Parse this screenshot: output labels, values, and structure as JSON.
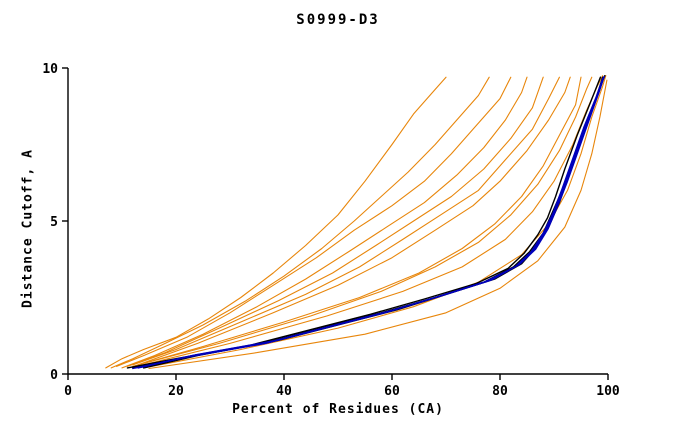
{
  "chart_data": {
    "type": "line",
    "title": "S0999-D3",
    "xlabel": "Percent of Residues (CA)",
    "ylabel": "Distance Cutoff, A",
    "xlim": [
      0,
      100
    ],
    "ylim": [
      0,
      10
    ],
    "xticks": [
      0,
      20,
      40,
      60,
      80,
      100
    ],
    "yticks": [
      0,
      5,
      10
    ],
    "grid": false,
    "legend": "none",
    "colors": {
      "orange": "#e8860b",
      "black": "#000000",
      "blue": "#0000bb"
    },
    "series": [
      {
        "color": "orange",
        "points": [
          [
            7,
            0.2
          ],
          [
            10,
            0.5
          ],
          [
            14,
            0.8
          ],
          [
            20,
            1.2
          ],
          [
            26,
            1.8
          ],
          [
            32,
            2.5
          ],
          [
            38,
            3.3
          ],
          [
            44,
            4.2
          ],
          [
            50,
            5.2
          ],
          [
            55,
            6.3
          ],
          [
            60,
            7.5
          ],
          [
            64,
            8.5
          ],
          [
            68,
            9.3
          ],
          [
            70,
            9.7
          ]
        ]
      },
      {
        "color": "orange",
        "points": [
          [
            8,
            0.2
          ],
          [
            12,
            0.5
          ],
          [
            18,
            1.0
          ],
          [
            25,
            1.6
          ],
          [
            33,
            2.4
          ],
          [
            40,
            3.2
          ],
          [
            47,
            4.1
          ],
          [
            53,
            5.0
          ],
          [
            58,
            5.8
          ],
          [
            63,
            6.6
          ],
          [
            68,
            7.5
          ],
          [
            72,
            8.3
          ],
          [
            76,
            9.1
          ],
          [
            78,
            9.7
          ]
        ]
      },
      {
        "color": "orange",
        "points": [
          [
            9,
            0.25
          ],
          [
            14,
            0.6
          ],
          [
            22,
            1.2
          ],
          [
            30,
            2.0
          ],
          [
            38,
            2.9
          ],
          [
            46,
            3.8
          ],
          [
            53,
            4.7
          ],
          [
            60,
            5.5
          ],
          [
            66,
            6.3
          ],
          [
            71,
            7.2
          ],
          [
            76,
            8.2
          ],
          [
            80,
            9.0
          ],
          [
            82,
            9.7
          ]
        ]
      },
      {
        "color": "orange",
        "points": [
          [
            10,
            0.2
          ],
          [
            16,
            0.6
          ],
          [
            25,
            1.3
          ],
          [
            35,
            2.2
          ],
          [
            44,
            3.1
          ],
          [
            52,
            4.0
          ],
          [
            59,
            4.8
          ],
          [
            66,
            5.6
          ],
          [
            72,
            6.5
          ],
          [
            77,
            7.4
          ],
          [
            81,
            8.3
          ],
          [
            84,
            9.2
          ],
          [
            85,
            9.7
          ]
        ]
      },
      {
        "color": "orange",
        "points": [
          [
            11,
            0.25
          ],
          [
            18,
            0.7
          ],
          [
            28,
            1.5
          ],
          [
            39,
            2.4
          ],
          [
            49,
            3.3
          ],
          [
            57,
            4.2
          ],
          [
            64,
            5.0
          ],
          [
            71,
            5.8
          ],
          [
            77,
            6.7
          ],
          [
            82,
            7.7
          ],
          [
            86,
            8.7
          ],
          [
            88,
            9.7
          ]
        ]
      },
      {
        "color": "orange",
        "points": [
          [
            12,
            0.3
          ],
          [
            20,
            0.8
          ],
          [
            32,
            1.7
          ],
          [
            44,
            2.6
          ],
          [
            54,
            3.5
          ],
          [
            62,
            4.4
          ],
          [
            69,
            5.2
          ],
          [
            76,
            6.0
          ],
          [
            81,
            7.0
          ],
          [
            86,
            8.0
          ],
          [
            89,
            9.0
          ],
          [
            91,
            9.7
          ]
        ]
      },
      {
        "color": "orange",
        "points": [
          [
            13,
            0.3
          ],
          [
            24,
            1.0
          ],
          [
            38,
            2.0
          ],
          [
            50,
            2.9
          ],
          [
            60,
            3.8
          ],
          [
            68,
            4.7
          ],
          [
            75,
            5.5
          ],
          [
            80,
            6.3
          ],
          [
            85,
            7.3
          ],
          [
            89,
            8.3
          ],
          [
            92,
            9.2
          ],
          [
            93,
            9.7
          ]
        ]
      },
      {
        "color": "orange",
        "points": [
          [
            12,
            0.25
          ],
          [
            25,
            0.9
          ],
          [
            40,
            1.7
          ],
          [
            54,
            2.5
          ],
          [
            65,
            3.3
          ],
          [
            73,
            4.1
          ],
          [
            79,
            4.9
          ],
          [
            84,
            5.8
          ],
          [
            88,
            6.8
          ],
          [
            91,
            7.8
          ],
          [
            94,
            8.8
          ],
          [
            95,
            9.7
          ]
        ]
      },
      {
        "color": "orange",
        "points": [
          [
            13,
            0.3
          ],
          [
            28,
            1.0
          ],
          [
            45,
            1.9
          ],
          [
            58,
            2.7
          ],
          [
            68,
            3.5
          ],
          [
            76,
            4.3
          ],
          [
            82,
            5.2
          ],
          [
            87,
            6.2
          ],
          [
            91,
            7.3
          ],
          [
            94,
            8.4
          ],
          [
            96,
            9.3
          ],
          [
            97,
            9.7
          ]
        ]
      },
      {
        "color": "orange",
        "points": [
          [
            14,
            0.3
          ],
          [
            30,
            1.0
          ],
          [
            48,
            1.9
          ],
          [
            62,
            2.7
          ],
          [
            73,
            3.5
          ],
          [
            81,
            4.4
          ],
          [
            86,
            5.3
          ],
          [
            90,
            6.3
          ],
          [
            93.5,
            7.5
          ],
          [
            96,
            8.6
          ],
          [
            98,
            9.4
          ],
          [
            99,
            9.75
          ]
        ]
      },
      {
        "color": "orange",
        "points": [
          [
            14,
            0.2
          ],
          [
            32,
            0.8
          ],
          [
            50,
            1.5
          ],
          [
            64,
            2.2
          ],
          [
            76,
            3.0
          ],
          [
            84,
            3.9
          ],
          [
            89,
            4.9
          ],
          [
            92.5,
            6.0
          ],
          [
            95,
            7.2
          ],
          [
            97,
            8.4
          ],
          [
            99,
            9.4
          ],
          [
            99.6,
            9.75
          ]
        ]
      },
      {
        "color": "orange",
        "points": [
          [
            15,
            0.18
          ],
          [
            35,
            0.7
          ],
          [
            55,
            1.3
          ],
          [
            70,
            2.0
          ],
          [
            80,
            2.8
          ],
          [
            87,
            3.7
          ],
          [
            92,
            4.8
          ],
          [
            95,
            6.0
          ],
          [
            97,
            7.2
          ],
          [
            98.5,
            8.4
          ],
          [
            99.8,
            9.6
          ]
        ]
      },
      {
        "color": "black",
        "points": [
          [
            12,
            0.2
          ],
          [
            22,
            0.55
          ],
          [
            36,
            1.0
          ],
          [
            47,
            1.5
          ],
          [
            58,
            2.0
          ],
          [
            68,
            2.5
          ],
          [
            77,
            3.0
          ],
          [
            82.5,
            3.5
          ],
          [
            85.5,
            4.0
          ],
          [
            88,
            4.6
          ],
          [
            89.5,
            5.2
          ],
          [
            91.5,
            6.0
          ],
          [
            93.5,
            7.0
          ],
          [
            95.5,
            8.0
          ],
          [
            97.8,
            9.0
          ],
          [
            99,
            9.7
          ]
        ]
      },
      {
        "color": "black",
        "points": [
          [
            14,
            0.2
          ],
          [
            24,
            0.6
          ],
          [
            39,
            1.1
          ],
          [
            50,
            1.6
          ],
          [
            61,
            2.1
          ],
          [
            70,
            2.6
          ],
          [
            79,
            3.1
          ],
          [
            84,
            3.6
          ],
          [
            86.5,
            4.1
          ],
          [
            89,
            4.8
          ],
          [
            91,
            5.6
          ],
          [
            93,
            6.6
          ],
          [
            95,
            7.6
          ],
          [
            97,
            8.6
          ],
          [
            98.8,
            9.5
          ],
          [
            99.4,
            9.75
          ]
        ]
      },
      {
        "color": "black",
        "points": [
          [
            11,
            0.2
          ],
          [
            20,
            0.5
          ],
          [
            34,
            0.95
          ],
          [
            45,
            1.45
          ],
          [
            56,
            1.95
          ],
          [
            66,
            2.45
          ],
          [
            75.5,
            2.95
          ],
          [
            81.5,
            3.45
          ],
          [
            84.5,
            3.95
          ],
          [
            87,
            4.55
          ],
          [
            88.8,
            5.1
          ],
          [
            90.3,
            5.8
          ],
          [
            92,
            6.7
          ],
          [
            94.3,
            7.8
          ],
          [
            96.8,
            8.9
          ],
          [
            98.6,
            9.7
          ]
        ]
      },
      {
        "color": "blue",
        "points": [
          [
            12.5,
            0.2
          ],
          [
            22.5,
            0.57
          ],
          [
            37,
            1.02
          ],
          [
            48,
            1.52
          ],
          [
            59,
            2.02
          ],
          [
            68.5,
            2.52
          ],
          [
            77.5,
            3.02
          ],
          [
            83,
            3.52
          ],
          [
            86,
            4.02
          ],
          [
            88.3,
            4.65
          ],
          [
            90,
            5.3
          ],
          [
            91.8,
            6.1
          ],
          [
            93.8,
            7.1
          ],
          [
            95.8,
            8.1
          ],
          [
            98,
            9.1
          ],
          [
            99.1,
            9.68
          ]
        ]
      },
      {
        "color": "blue",
        "points": [
          [
            13,
            0.2
          ],
          [
            23,
            0.6
          ],
          [
            37.5,
            1.05
          ],
          [
            48.5,
            1.55
          ],
          [
            59.5,
            2.05
          ],
          [
            69,
            2.55
          ],
          [
            78,
            3.05
          ],
          [
            83.3,
            3.55
          ],
          [
            86.3,
            4.05
          ],
          [
            88.6,
            4.7
          ],
          [
            90.3,
            5.4
          ],
          [
            92.2,
            6.2
          ],
          [
            94.2,
            7.2
          ],
          [
            96.2,
            8.2
          ],
          [
            98.3,
            9.2
          ],
          [
            99.2,
            9.7
          ]
        ]
      },
      {
        "color": "blue",
        "points": [
          [
            12,
            0.18
          ],
          [
            22,
            0.55
          ],
          [
            36.5,
            1.0
          ],
          [
            47.5,
            1.5
          ],
          [
            58.5,
            2.0
          ],
          [
            68,
            2.5
          ],
          [
            77,
            3.0
          ],
          [
            82.8,
            3.5
          ],
          [
            85.8,
            4.0
          ],
          [
            88,
            4.6
          ],
          [
            89.8,
            5.25
          ],
          [
            91.5,
            6.05
          ],
          [
            93.5,
            7.05
          ],
          [
            95.5,
            8.05
          ],
          [
            97.8,
            9.05
          ],
          [
            99,
            9.65
          ]
        ]
      },
      {
        "color": "blue",
        "points": [
          [
            13.5,
            0.22
          ],
          [
            23.5,
            0.62
          ],
          [
            38,
            1.08
          ],
          [
            49,
            1.58
          ],
          [
            60,
            2.08
          ],
          [
            69.5,
            2.58
          ],
          [
            78.5,
            3.08
          ],
          [
            83.6,
            3.58
          ],
          [
            86.6,
            4.08
          ],
          [
            88.9,
            4.75
          ],
          [
            90.6,
            5.45
          ],
          [
            92.5,
            6.3
          ],
          [
            94.5,
            7.3
          ],
          [
            96.5,
            8.3
          ],
          [
            98.5,
            9.3
          ],
          [
            99.3,
            9.72
          ]
        ]
      }
    ]
  }
}
